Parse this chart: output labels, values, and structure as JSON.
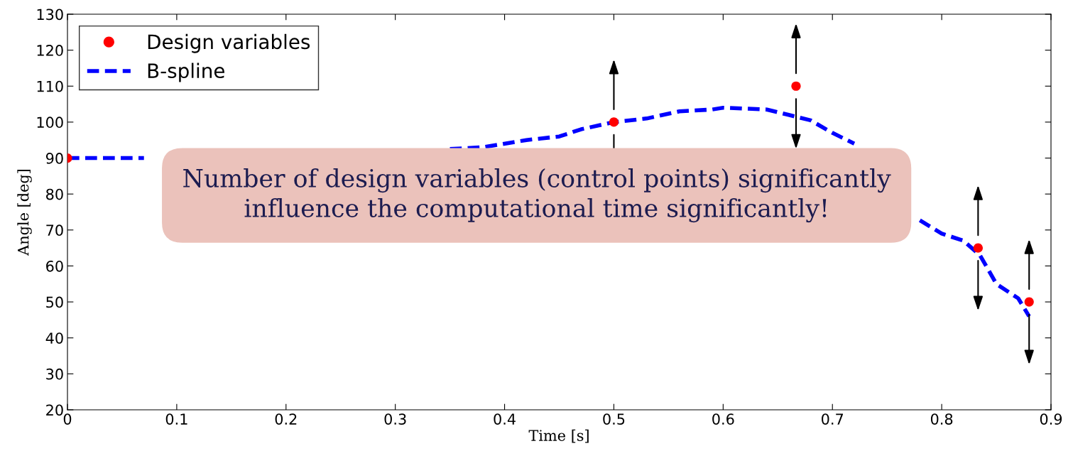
{
  "chart_data": {
    "type": "line",
    "xlabel": "Time [s]",
    "ylabel": "Angle [deg]",
    "xlim": [
      0,
      0.9
    ],
    "xticks": [
      0,
      0.1,
      0.2,
      0.3,
      0.4,
      0.5,
      0.6,
      0.7,
      0.8,
      0.9
    ],
    "ylim": [
      20,
      130
    ],
    "yticks": [
      20,
      30,
      40,
      50,
      60,
      70,
      80,
      90,
      100,
      110,
      120,
      130
    ],
    "grid": false,
    "legend": "top left",
    "annotations": [
      "Number of design variables (control points) significantly\ninfluence the computational time significantly!"
    ],
    "series": [
      {
        "name": "Design variables",
        "type": "scatter",
        "color": "#ff0000",
        "marker": "circle",
        "x": [
          0,
          0.1667,
          0.3333,
          0.5,
          0.6667,
          0.8333,
          0.88
        ],
        "values": [
          90,
          null,
          null,
          100,
          110,
          65,
          50
        ]
      },
      {
        "name": "B-spline",
        "color": "#0000ff",
        "line_style": "dashed",
        "marker": "none",
        "x": [
          0,
          0.03,
          0.07,
          0.1,
          0.33,
          0.35,
          0.38,
          0.42,
          0.45,
          0.47,
          0.5,
          0.53,
          0.56,
          0.59,
          0.6,
          0.64,
          0.66,
          0.68,
          0.7,
          0.72,
          0.73,
          0.76,
          0.78,
          0.8,
          0.82,
          0.835,
          0.85,
          0.87,
          0.88
        ],
        "values": [
          90,
          90,
          90,
          null,
          null,
          92.5,
          93,
          95,
          96,
          98,
          100,
          101,
          103,
          103.5,
          104,
          103.5,
          102,
          100.5,
          97,
          94,
          null,
          null,
          72.7,
          69,
          67,
          63,
          55,
          51,
          46
        ]
      }
    ]
  }
}
